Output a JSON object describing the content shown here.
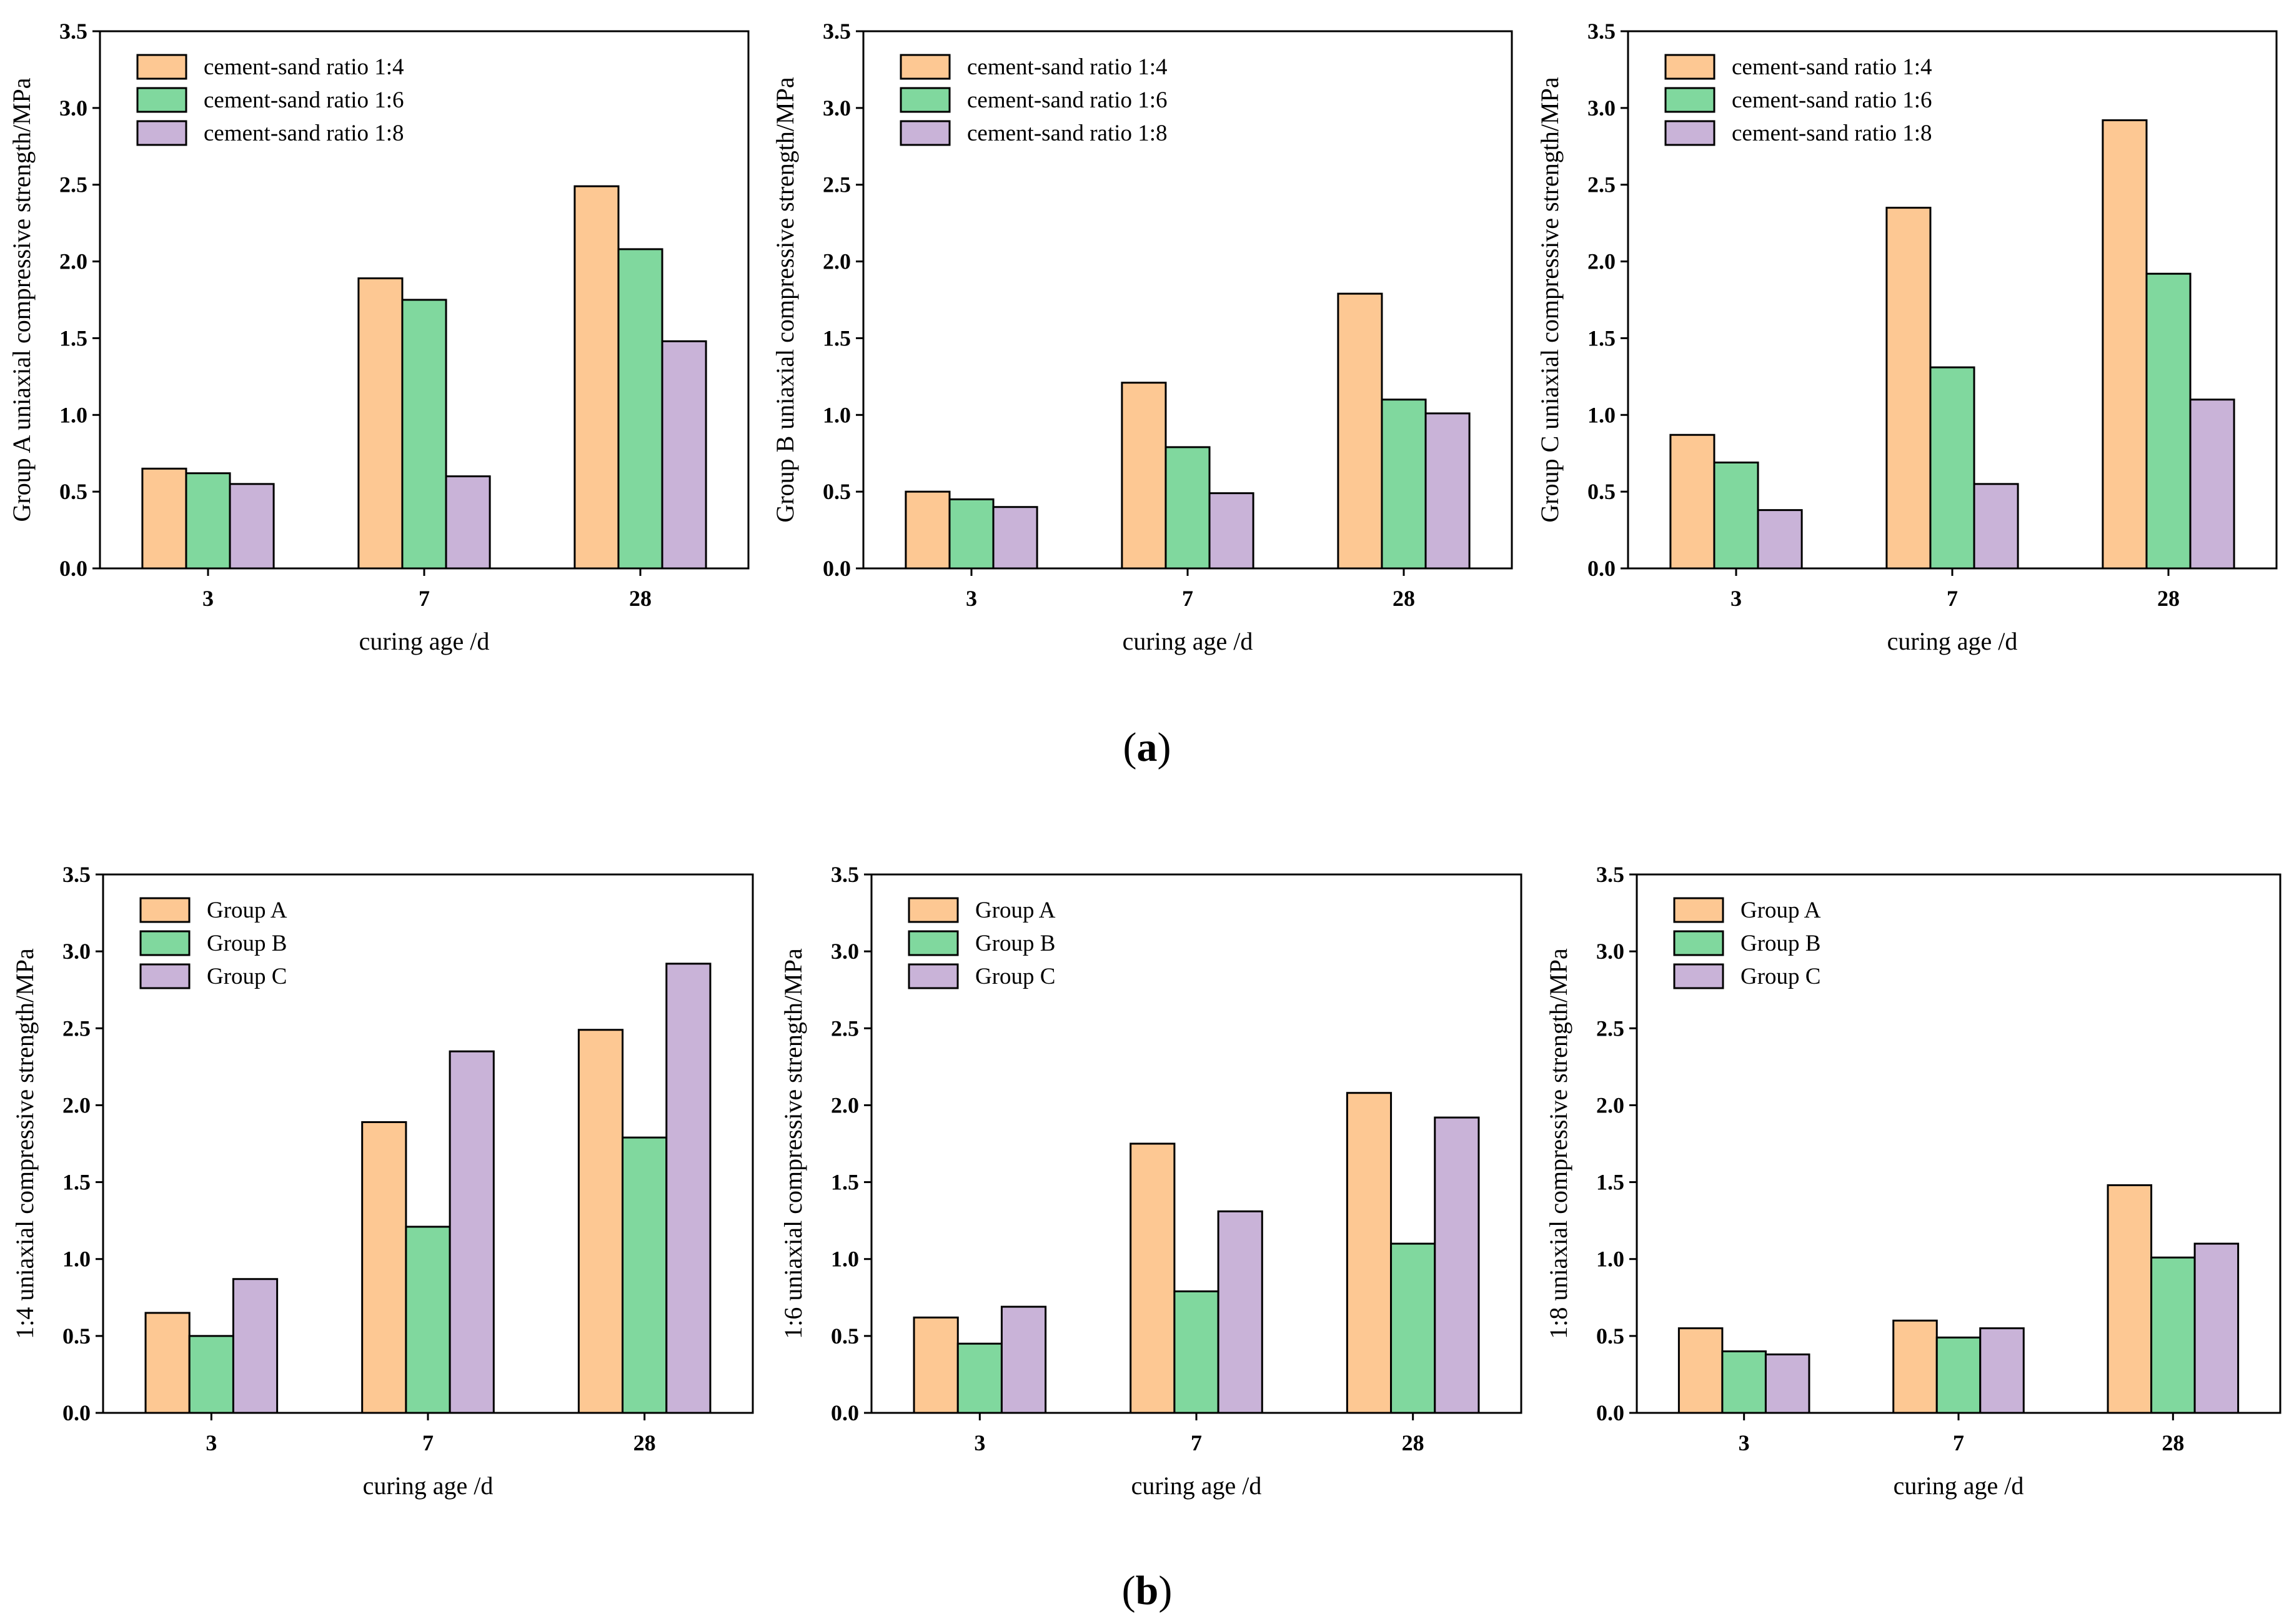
{
  "figure": {
    "panel_labels": [
      {
        "open": "(",
        "letter": "a",
        "close": ")"
      },
      {
        "open": "(",
        "letter": "b",
        "close": ")"
      }
    ]
  },
  "colors": {
    "orange": "#FDC893",
    "green": "#80D89E",
    "purple": "#C9B3D8",
    "edge": "#000000"
  },
  "chart_data": [
    {
      "type": "bar",
      "categories": [
        "3",
        "7",
        "28"
      ],
      "xlabel": "curing age /d",
      "ylabel": "Group A uniaxial compressive strength/MPa",
      "ylim": [
        0,
        3.5
      ],
      "yticks": [
        "0.0",
        "0.5",
        "1.0",
        "1.5",
        "2.0",
        "2.5",
        "3.0",
        "3.5"
      ],
      "legend_position": "top-left",
      "series": [
        {
          "name": "cement-sand ratio 1:4",
          "color": "orange",
          "values": [
            0.65,
            1.89,
            2.49
          ]
        },
        {
          "name": "cement-sand ratio 1:6",
          "color": "green",
          "values": [
            0.62,
            1.75,
            2.08
          ]
        },
        {
          "name": "cement-sand ratio 1:8",
          "color": "purple",
          "values": [
            0.55,
            0.6,
            1.48
          ]
        }
      ]
    },
    {
      "type": "bar",
      "categories": [
        "3",
        "7",
        "28"
      ],
      "xlabel": "curing age /d",
      "ylabel": "Group B uniaxial compressive strength/MPa",
      "ylim": [
        0,
        3.5
      ],
      "yticks": [
        "0.0",
        "0.5",
        "1.0",
        "1.5",
        "2.0",
        "2.5",
        "3.0",
        "3.5"
      ],
      "legend_position": "top-left",
      "series": [
        {
          "name": "cement-sand ratio 1:4",
          "color": "orange",
          "values": [
            0.5,
            1.21,
            1.79
          ]
        },
        {
          "name": "cement-sand ratio 1:6",
          "color": "green",
          "values": [
            0.45,
            0.79,
            1.1
          ]
        },
        {
          "name": "cement-sand ratio 1:8",
          "color": "purple",
          "values": [
            0.4,
            0.49,
            1.01
          ]
        }
      ]
    },
    {
      "type": "bar",
      "categories": [
        "3",
        "7",
        "28"
      ],
      "xlabel": "curing age /d",
      "ylabel": "Group C uniaxial compressive strength/MPa",
      "ylim": [
        0,
        3.5
      ],
      "yticks": [
        "0.0",
        "0.5",
        "1.0",
        "1.5",
        "2.0",
        "2.5",
        "3.0",
        "3.5"
      ],
      "legend_position": "top-left",
      "series": [
        {
          "name": "cement-sand ratio 1:4",
          "color": "orange",
          "values": [
            0.87,
            2.35,
            2.92
          ]
        },
        {
          "name": "cement-sand ratio 1:6",
          "color": "green",
          "values": [
            0.69,
            1.31,
            1.92
          ]
        },
        {
          "name": "cement-sand ratio 1:8",
          "color": "purple",
          "values": [
            0.38,
            0.55,
            1.1
          ]
        }
      ]
    },
    {
      "type": "bar",
      "categories": [
        "3",
        "7",
        "28"
      ],
      "xlabel": "curing age /d",
      "ylabel": "1:4 uniaxial compressive strength/MPa",
      "ylim": [
        0,
        3.5
      ],
      "yticks": [
        "0.0",
        "0.5",
        "1.0",
        "1.5",
        "2.0",
        "2.5",
        "3.0",
        "3.5"
      ],
      "legend_position": "top-left",
      "series": [
        {
          "name": "Group  A",
          "color": "orange",
          "values": [
            0.65,
            1.89,
            2.49
          ]
        },
        {
          "name": "Group  B",
          "color": "green",
          "values": [
            0.5,
            1.21,
            1.79
          ]
        },
        {
          "name": "Group  C",
          "color": "purple",
          "values": [
            0.87,
            2.35,
            2.92
          ]
        }
      ]
    },
    {
      "type": "bar",
      "categories": [
        "3",
        "7",
        "28"
      ],
      "xlabel": "curing age /d",
      "ylabel": "1:6 uniaxial compressive strength/MPa",
      "ylim": [
        0,
        3.5
      ],
      "yticks": [
        "0.0",
        "0.5",
        "1.0",
        "1.5",
        "2.0",
        "2.5",
        "3.0",
        "3.5"
      ],
      "legend_position": "top-left",
      "series": [
        {
          "name": "Group  A",
          "color": "orange",
          "values": [
            0.62,
            1.75,
            2.08
          ]
        },
        {
          "name": "Group  B",
          "color": "green",
          "values": [
            0.45,
            0.79,
            1.1
          ]
        },
        {
          "name": "Group  C",
          "color": "purple",
          "values": [
            0.69,
            1.31,
            1.92
          ]
        }
      ]
    },
    {
      "type": "bar",
      "categories": [
        "3",
        "7",
        "28"
      ],
      "xlabel": "curing age /d",
      "ylabel": "1:8 uniaxial compressive strength/MPa",
      "ylim": [
        0,
        3.5
      ],
      "yticks": [
        "0.0",
        "0.5",
        "1.0",
        "1.5",
        "2.0",
        "2.5",
        "3.0",
        "3.5"
      ],
      "legend_position": "top-left",
      "series": [
        {
          "name": "Group  A",
          "color": "orange",
          "values": [
            0.55,
            0.6,
            1.48
          ]
        },
        {
          "name": "Group  B",
          "color": "green",
          "values": [
            0.4,
            0.49,
            1.01
          ]
        },
        {
          "name": "Group  C",
          "color": "purple",
          "values": [
            0.38,
            0.55,
            1.1
          ]
        }
      ]
    }
  ]
}
